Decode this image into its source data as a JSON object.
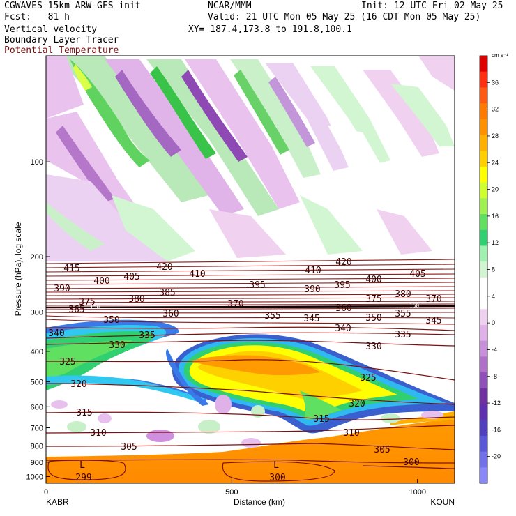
{
  "header": {
    "model": "CGWAVES 15km ARW-GFS init",
    "forecast": "Fcst:   81 h",
    "field1": "Vertical velocity",
    "field2": "Boundary Layer Tracer",
    "field3": "Potential Temperature",
    "center": "NCAR/MMM",
    "init": "Init: 12 UTC Fri 02 May 25",
    "valid": "Valid: 21 UTC Mon 05 May 25 (16 CDT Mon 05 May 25)",
    "xy": "XY= 187.4,173.8 to 191.8,100.1",
    "field3_color": "#7a1010"
  },
  "chart_data": {
    "type": "heatmap",
    "ylabel": "Pressure (hPa), log scale",
    "xlabel": "Distance (km)",
    "left_endpoint": "KABR",
    "right_endpoint": "KOUN",
    "x_ticks": [
      0,
      500,
      1000
    ],
    "xlim": [
      0,
      1100
    ],
    "y_ticks": [
      100,
      200,
      300,
      400,
      500,
      600,
      700,
      800,
      900,
      1000
    ],
    "colorbar": {
      "unit": "cm s⁻¹",
      "ticks": [
        36,
        32,
        28,
        24,
        20,
        16,
        12,
        8,
        4,
        0,
        -4,
        -8,
        -12,
        -16,
        -20
      ],
      "colors": [
        "#e00000",
        "#ff3010",
        "#ff5a10",
        "#ff7a00",
        "#ff9000",
        "#ffb000",
        "#ffd000",
        "#ffff00",
        "#d0ff30",
        "#a0f050",
        "#60e060",
        "#30d070",
        "#a0f0b0",
        "#d0f5d0",
        "#ffffff",
        "#ffffff",
        "#f0d0f0",
        "#e0b0e8",
        "#c890d8",
        "#b070c8",
        "#9050b8",
        "#7030a0",
        "#6030b0",
        "#5040c0",
        "#5858d8",
        "#7070e8",
        "#8888f8"
      ]
    },
    "theta_labels": [
      {
        "v": "415",
        "x": 103,
        "y": 384
      },
      {
        "v": "420",
        "x": 236,
        "y": 382
      },
      {
        "v": "420",
        "x": 493,
        "y": 375
      },
      {
        "v": "410",
        "x": 283,
        "y": 392
      },
      {
        "v": "410",
        "x": 449,
        "y": 387
      },
      {
        "v": "405",
        "x": 189,
        "y": 396
      },
      {
        "v": "405",
        "x": 599,
        "y": 392
      },
      {
        "v": "400",
        "x": 146,
        "y": 402
      },
      {
        "v": "400",
        "x": 536,
        "y": 400
      },
      {
        "v": "395",
        "x": 369,
        "y": 408
      },
      {
        "v": "395",
        "x": 491,
        "y": 408
      },
      {
        "v": "390",
        "x": 89,
        "y": 413
      },
      {
        "v": "390",
        "x": 448,
        "y": 414
      },
      {
        "v": "385",
        "x": 240,
        "y": 419
      },
      {
        "v": "380",
        "x": 196,
        "y": 428
      },
      {
        "v": "380",
        "x": 578,
        "y": 421
      },
      {
        "v": "375",
        "x": 125,
        "y": 432
      },
      {
        "v": "375",
        "x": 536,
        "y": 428
      },
      {
        "v": "370",
        "x": 338,
        "y": 435
      },
      {
        "v": "370",
        "x": 622,
        "y": 428
      },
      {
        "v": "365",
        "x": 110,
        "y": 443
      },
      {
        "v": "360",
        "x": 493,
        "y": 441
      },
      {
        "v": "360",
        "x": 245,
        "y": 449
      },
      {
        "v": "355",
        "x": 391,
        "y": 452
      },
      {
        "v": "355",
        "x": 578,
        "y": 449
      },
      {
        "v": "350",
        "x": 160,
        "y": 458
      },
      {
        "v": "350",
        "x": 536,
        "y": 455
      },
      {
        "v": "345",
        "x": 447,
        "y": 456
      },
      {
        "v": "345",
        "x": 622,
        "y": 459
      },
      {
        "v": "340",
        "x": 81,
        "y": 477
      },
      {
        "v": "340",
        "x": 492,
        "y": 470
      },
      {
        "v": "335",
        "x": 211,
        "y": 480
      },
      {
        "v": "335",
        "x": 578,
        "y": 479
      },
      {
        "v": "330",
        "x": 168,
        "y": 494
      },
      {
        "v": "330",
        "x": 536,
        "y": 496
      },
      {
        "v": "325",
        "x": 97,
        "y": 518
      },
      {
        "v": "325",
        "x": 528,
        "y": 541
      },
      {
        "v": "320",
        "x": 113,
        "y": 550
      },
      {
        "v": "320",
        "x": 512,
        "y": 578
      },
      {
        "v": "315",
        "x": 121,
        "y": 591
      },
      {
        "v": "315",
        "x": 461,
        "y": 600
      },
      {
        "v": "310",
        "x": 141,
        "y": 620
      },
      {
        "v": "310",
        "x": 504,
        "y": 620
      },
      {
        "v": "305",
        "x": 185,
        "y": 640
      },
      {
        "v": "305",
        "x": 548,
        "y": 644
      },
      {
        "v": "300",
        "x": 590,
        "y": 662
      },
      {
        "v": "300",
        "x": 398,
        "y": 684
      },
      {
        "v": "299",
        "x": 120,
        "y": 684
      }
    ],
    "marker_labels": [
      {
        "v": "L",
        "x": 118,
        "y": 666
      },
      {
        "v": "L",
        "x": 396,
        "y": 666
      },
      {
        "v": "150",
        "x": 136,
        "y": 437
      },
      {
        "v": "150",
        "x": 594,
        "y": 436
      }
    ]
  }
}
